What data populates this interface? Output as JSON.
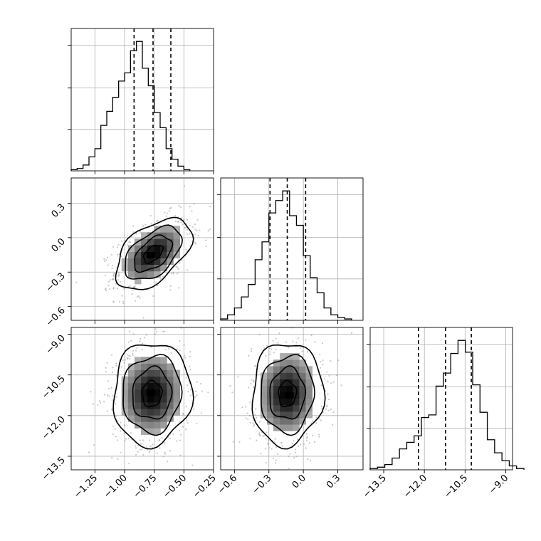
{
  "chart_data": {
    "type": "corner",
    "parameters": [
      {
        "range": [
          -1.45,
          -0.25
        ],
        "ticks": [
          -1.25,
          -1.0,
          -0.75,
          -0.5,
          -0.25
        ],
        "tick_labels": [
          "−1.25",
          "−1.00",
          "−0.75",
          "−0.50",
          "−0.25"
        ],
        "quantiles": [
          -0.92,
          -0.76,
          -0.61
        ],
        "hist_edges_start": -1.45,
        "hist_bin_width": 0.05,
        "hist_counts": [
          1,
          2,
          5,
          12,
          19,
          39,
          51,
          63,
          77,
          84,
          103,
          111,
          88,
          73,
          50,
          37,
          19,
          10,
          4,
          1
        ]
      },
      {
        "range": [
          -0.72,
          0.52
        ],
        "ticks": [
          -0.6,
          -0.3,
          0.0,
          0.3
        ],
        "tick_labels": [
          "−0.6",
          "−0.3",
          "0.0",
          "0.3"
        ],
        "quantiles": [
          -0.29,
          -0.14,
          0.02
        ],
        "hist_edges_start": -0.72,
        "hist_bin_width": 0.06,
        "hist_counts": [
          1,
          4,
          9,
          17,
          26,
          44,
          57,
          78,
          87,
          94,
          76,
          69,
          47,
          31,
          20,
          9,
          4,
          2,
          1
        ]
      },
      {
        "range": [
          -14.0,
          -8.75
        ],
        "ticks": [
          -13.5,
          -12.0,
          -10.5,
          -9.0
        ],
        "tick_labels": [
          "−13.5",
          "−12.0",
          "−10.5",
          "−9.0"
        ],
        "quantiles": [
          -12.22,
          -11.22,
          -10.27
        ],
        "hist_edges_start": -14.0,
        "hist_bin_width": 0.27,
        "hist_counts": [
          1,
          2,
          4,
          9,
          16,
          21,
          26,
          40,
          42,
          64,
          74,
          89,
          99,
          90,
          65,
          44,
          23,
          13,
          7,
          3,
          1
        ]
      }
    ],
    "pairs": [
      {
        "x_param": 0,
        "y_param": 1,
        "mean": [
          -0.76,
          -0.14
        ],
        "sigma": [
          0.16,
          0.155
        ],
        "corr": 0.5,
        "contour_levels_sigma": [
          0.5,
          1.0,
          1.5,
          2.0
        ],
        "peak": [
          -0.78,
          -0.15
        ]
      },
      {
        "x_param": 0,
        "y_param": 2,
        "mean": [
          -0.77,
          -11.2
        ],
        "sigma": [
          0.165,
          0.95
        ],
        "corr": 0.05,
        "contour_levels_sigma": [
          0.5,
          1.0,
          1.5,
          2.0
        ],
        "peak": [
          -0.78,
          -11.15
        ]
      },
      {
        "x_param": 1,
        "y_param": 2,
        "mean": [
          -0.14,
          -11.2
        ],
        "sigma": [
          0.155,
          0.95
        ],
        "corr": 0.05,
        "contour_levels_sigma": [
          0.5,
          1.0,
          1.5,
          2.0
        ],
        "peak": [
          -0.12,
          -11.25
        ]
      }
    ],
    "grid": true,
    "xlabel": "",
    "ylabel": "",
    "title": ""
  }
}
